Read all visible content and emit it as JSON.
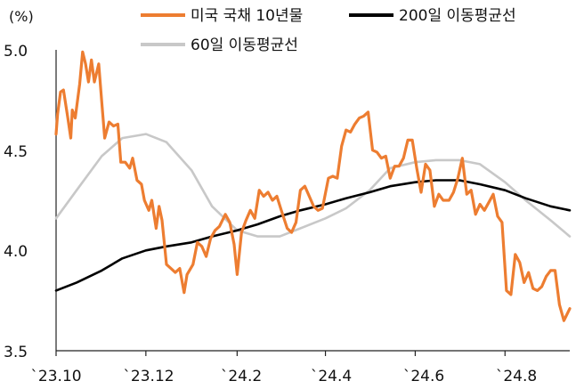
{
  "chart_data": {
    "type": "line",
    "ylabel": "(%)",
    "ylim": [
      3.5,
      5.0
    ],
    "yticks": [
      "5.0",
      "4.5",
      "4.0",
      "3.5"
    ],
    "ytick_values": [
      5.0,
      4.5,
      4.0,
      3.5
    ],
    "xticks": [
      "`23.10",
      "`23.12",
      "`24.2",
      "`24.4",
      "`24.6",
      "`24.8"
    ],
    "xtick_dates": [
      "2023-10-01",
      "2023-12-01",
      "2024-02-01",
      "2024-04-01",
      "2024-06-01",
      "2024-08-01"
    ],
    "xlim": [
      "2023-10-01",
      "2024-09-14"
    ],
    "grid": false,
    "legend": "top",
    "series": [
      {
        "name": "미국 국채 10년물",
        "color": "#ED7D31",
        "points": [
          [
            "2023-10-01",
            4.58
          ],
          [
            "2023-10-02",
            4.68
          ],
          [
            "2023-10-04",
            4.79
          ],
          [
            "2023-10-06",
            4.8
          ],
          [
            "2023-10-09",
            4.66
          ],
          [
            "2023-10-11",
            4.56
          ],
          [
            "2023-10-12",
            4.7
          ],
          [
            "2023-10-14",
            4.66
          ],
          [
            "2023-10-17",
            4.83
          ],
          [
            "2023-10-19",
            4.99
          ],
          [
            "2023-10-21",
            4.93
          ],
          [
            "2023-10-23",
            4.84
          ],
          [
            "2023-10-25",
            4.95
          ],
          [
            "2023-10-27",
            4.84
          ],
          [
            "2023-10-30",
            4.93
          ],
          [
            "2023-11-01",
            4.74
          ],
          [
            "2023-11-03",
            4.56
          ],
          [
            "2023-11-06",
            4.64
          ],
          [
            "2023-11-09",
            4.62
          ],
          [
            "2023-11-12",
            4.63
          ],
          [
            "2023-11-14",
            4.44
          ],
          [
            "2023-11-17",
            4.44
          ],
          [
            "2023-11-20",
            4.41
          ],
          [
            "2023-11-22",
            4.46
          ],
          [
            "2023-11-25",
            4.35
          ],
          [
            "2023-11-28",
            4.33
          ],
          [
            "2023-11-30",
            4.25
          ],
          [
            "2023-12-03",
            4.2
          ],
          [
            "2023-12-05",
            4.25
          ],
          [
            "2023-12-08",
            4.11
          ],
          [
            "2023-12-10",
            4.22
          ],
          [
            "2023-12-12",
            4.15
          ],
          [
            "2023-12-15",
            3.93
          ],
          [
            "2023-12-18",
            3.91
          ],
          [
            "2023-12-21",
            3.89
          ],
          [
            "2023-12-24",
            3.91
          ],
          [
            "2023-12-27",
            3.79
          ],
          [
            "2023-12-29",
            3.88
          ],
          [
            "2024-01-02",
            3.93
          ],
          [
            "2024-01-05",
            4.04
          ],
          [
            "2024-01-08",
            4.02
          ],
          [
            "2024-01-11",
            3.97
          ],
          [
            "2024-01-14",
            4.06
          ],
          [
            "2024-01-17",
            4.1
          ],
          [
            "2024-01-20",
            4.12
          ],
          [
            "2024-01-24",
            4.18
          ],
          [
            "2024-01-27",
            4.14
          ],
          [
            "2024-01-30",
            4.03
          ],
          [
            "2024-02-01",
            3.88
          ],
          [
            "2024-02-04",
            4.09
          ],
          [
            "2024-02-07",
            4.15
          ],
          [
            "2024-02-10",
            4.2
          ],
          [
            "2024-02-13",
            4.16
          ],
          [
            "2024-02-16",
            4.3
          ],
          [
            "2024-02-19",
            4.27
          ],
          [
            "2024-02-22",
            4.29
          ],
          [
            "2024-02-25",
            4.25
          ],
          [
            "2024-02-28",
            4.27
          ],
          [
            "2024-03-02",
            4.2
          ],
          [
            "2024-03-06",
            4.11
          ],
          [
            "2024-03-09",
            4.09
          ],
          [
            "2024-03-12",
            4.14
          ],
          [
            "2024-03-15",
            4.3
          ],
          [
            "2024-03-18",
            4.32
          ],
          [
            "2024-03-21",
            4.27
          ],
          [
            "2024-03-24",
            4.22
          ],
          [
            "2024-03-27",
            4.2
          ],
          [
            "2024-03-30",
            4.21
          ],
          [
            "2024-04-03",
            4.36
          ],
          [
            "2024-04-06",
            4.37
          ],
          [
            "2024-04-09",
            4.36
          ],
          [
            "2024-04-12",
            4.52
          ],
          [
            "2024-04-15",
            4.6
          ],
          [
            "2024-04-18",
            4.59
          ],
          [
            "2024-04-21",
            4.63
          ],
          [
            "2024-04-24",
            4.66
          ],
          [
            "2024-04-27",
            4.67
          ],
          [
            "2024-04-30",
            4.69
          ],
          [
            "2024-05-03",
            4.5
          ],
          [
            "2024-05-06",
            4.49
          ],
          [
            "2024-05-09",
            4.46
          ],
          [
            "2024-05-12",
            4.47
          ],
          [
            "2024-05-15",
            4.36
          ],
          [
            "2024-05-18",
            4.42
          ],
          [
            "2024-05-21",
            4.42
          ],
          [
            "2024-05-24",
            4.46
          ],
          [
            "2024-05-27",
            4.55
          ],
          [
            "2024-05-30",
            4.55
          ],
          [
            "2024-06-02",
            4.41
          ],
          [
            "2024-06-05",
            4.29
          ],
          [
            "2024-06-08",
            4.43
          ],
          [
            "2024-06-11",
            4.4
          ],
          [
            "2024-06-14",
            4.22
          ],
          [
            "2024-06-17",
            4.28
          ],
          [
            "2024-06-20",
            4.25
          ],
          [
            "2024-06-24",
            4.25
          ],
          [
            "2024-06-27",
            4.29
          ],
          [
            "2024-06-30",
            4.36
          ],
          [
            "2024-07-03",
            4.46
          ],
          [
            "2024-07-06",
            4.28
          ],
          [
            "2024-07-09",
            4.3
          ],
          [
            "2024-07-12",
            4.18
          ],
          [
            "2024-07-15",
            4.23
          ],
          [
            "2024-07-18",
            4.2
          ],
          [
            "2024-07-21",
            4.24
          ],
          [
            "2024-07-24",
            4.28
          ],
          [
            "2024-07-27",
            4.17
          ],
          [
            "2024-07-30",
            4.14
          ],
          [
            "2024-08-02",
            3.8
          ],
          [
            "2024-08-05",
            3.78
          ],
          [
            "2024-08-08",
            3.98
          ],
          [
            "2024-08-11",
            3.94
          ],
          [
            "2024-08-14",
            3.84
          ],
          [
            "2024-08-17",
            3.89
          ],
          [
            "2024-08-20",
            3.81
          ],
          [
            "2024-08-23",
            3.8
          ],
          [
            "2024-08-26",
            3.82
          ],
          [
            "2024-08-29",
            3.87
          ],
          [
            "2024-09-01",
            3.9
          ],
          [
            "2024-09-04",
            3.9
          ],
          [
            "2024-09-07",
            3.73
          ],
          [
            "2024-09-10",
            3.65
          ],
          [
            "2024-09-14",
            3.71
          ]
        ]
      },
      {
        "name": "200일 이동평균선",
        "color": "#000000",
        "points": [
          [
            "2023-10-01",
            3.8
          ],
          [
            "2023-10-15",
            3.84
          ],
          [
            "2023-11-01",
            3.9
          ],
          [
            "2023-11-15",
            3.96
          ],
          [
            "2023-12-01",
            4.0
          ],
          [
            "2023-12-15",
            4.02
          ],
          [
            "2024-01-01",
            4.04
          ],
          [
            "2024-01-15",
            4.07
          ],
          [
            "2024-02-01",
            4.1
          ],
          [
            "2024-02-15",
            4.13
          ],
          [
            "2024-03-01",
            4.17
          ],
          [
            "2024-03-15",
            4.2
          ],
          [
            "2024-04-01",
            4.23
          ],
          [
            "2024-04-15",
            4.26
          ],
          [
            "2024-05-01",
            4.29
          ],
          [
            "2024-05-15",
            4.32
          ],
          [
            "2024-06-01",
            4.34
          ],
          [
            "2024-06-15",
            4.35
          ],
          [
            "2024-07-01",
            4.35
          ],
          [
            "2024-07-15",
            4.33
          ],
          [
            "2024-08-01",
            4.3
          ],
          [
            "2024-08-15",
            4.26
          ],
          [
            "2024-09-01",
            4.22
          ],
          [
            "2024-09-14",
            4.2
          ]
        ]
      },
      {
        "name": "60일 이동평균선",
        "color": "#C8C8C8",
        "points": [
          [
            "2023-10-01",
            4.16
          ],
          [
            "2023-10-15",
            4.3
          ],
          [
            "2023-11-01",
            4.47
          ],
          [
            "2023-11-15",
            4.56
          ],
          [
            "2023-12-01",
            4.58
          ],
          [
            "2023-12-15",
            4.54
          ],
          [
            "2024-01-01",
            4.4
          ],
          [
            "2024-01-15",
            4.22
          ],
          [
            "2024-02-01",
            4.1
          ],
          [
            "2024-02-15",
            4.07
          ],
          [
            "2024-03-01",
            4.07
          ],
          [
            "2024-03-15",
            4.11
          ],
          [
            "2024-04-01",
            4.16
          ],
          [
            "2024-04-15",
            4.21
          ],
          [
            "2024-05-01",
            4.3
          ],
          [
            "2024-05-15",
            4.41
          ],
          [
            "2024-06-01",
            4.44
          ],
          [
            "2024-06-15",
            4.45
          ],
          [
            "2024-07-01",
            4.45
          ],
          [
            "2024-07-15",
            4.43
          ],
          [
            "2024-08-01",
            4.34
          ],
          [
            "2024-08-15",
            4.25
          ],
          [
            "2024-09-01",
            4.15
          ],
          [
            "2024-09-14",
            4.07
          ]
        ]
      }
    ]
  }
}
